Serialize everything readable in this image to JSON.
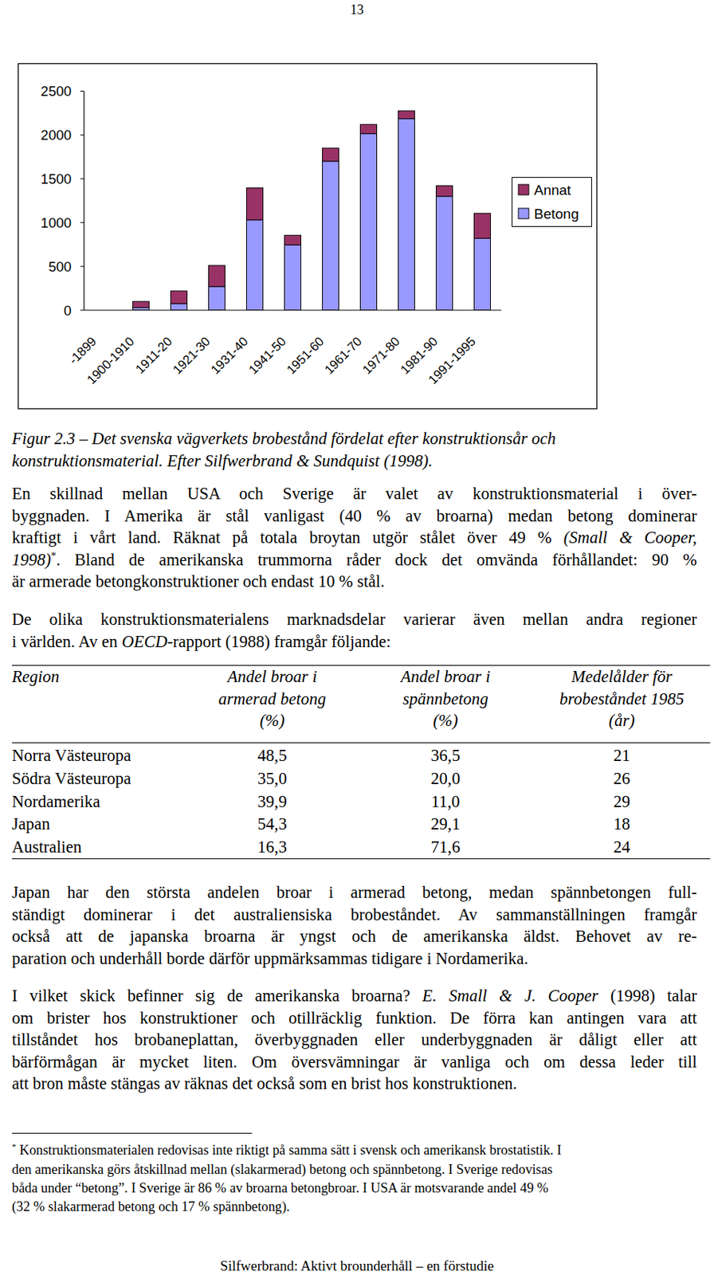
{
  "page_number": "13",
  "chart_data": {
    "type": "bar",
    "stacked": true,
    "categories": [
      "-1899",
      "1900-1910",
      "1911-20",
      "1921-30",
      "1931-40",
      "1941-50",
      "1951-60",
      "1961-70",
      "1971-80",
      "1981-90",
      "1991-1995"
    ],
    "series": [
      {
        "name": "Betong",
        "color": "#9999ff",
        "values": [
          0,
          30,
          75,
          270,
          1030,
          745,
          1700,
          2015,
          2185,
          1300,
          820
        ]
      },
      {
        "name": "Annat",
        "color": "#993366",
        "values": [
          0,
          70,
          145,
          240,
          365,
          110,
          150,
          105,
          90,
          120,
          285
        ]
      }
    ],
    "ylim": [
      0,
      2500
    ],
    "yticks": [
      0,
      500,
      1000,
      1500,
      2000,
      2500
    ],
    "grid": false,
    "legend": "right"
  },
  "caption": [
    "Figur 2.3 – Det svenska vägverkets brobestånd fördelat efter konstruktionsår och",
    "konstruktionsmaterial. Efter Silfwerbrand & Sundquist (1998)."
  ],
  "paragraphs": [
    {
      "lines": [
        [
          "En skillnad mellan USA och Sverige är valet av konstruktionsmaterial i över-"
        ],
        [
          "byggnaden. I Amerika är stål vanligast (40 % av broarna) medan betong dominerar"
        ],
        [
          "kraftigt i vårt land. Räknat på totala broytan utgör stålet över 49 % ",
          {
            "text": "(Small & Cooper,",
            "style": "italic"
          }
        ],
        [
          {
            "text": "1998)",
            "style": "italic"
          },
          {
            "text": "*",
            "style": "sup"
          },
          ". Bland de amerikanska trummorna råder dock det omvända förhållandet: 90 %"
        ],
        [
          "är armerade betongkonstruktioner och endast 10 % stål."
        ]
      ]
    },
    {
      "lines": [
        [
          "De olika konstruktionsmaterialens marknadsdelar varierar även mellan andra regioner"
        ],
        [
          "i världen. Av en ",
          {
            "text": "OECD",
            "style": "italic"
          },
          "-rapport (1988) framgår följande:"
        ]
      ]
    },
    {
      "lines": [
        [
          "Japan har den största andelen broar i armerad betong, medan spännbetongen full-"
        ],
        [
          "ständigt dominerar i det australiensiska brobeståndet. Av sammanställningen framgår"
        ],
        [
          "också att de japanska broarna är yngst och de amerikanska äldst. Behovet av re-"
        ],
        [
          "paration och underhåll borde därför uppmärksammas tidigare i Nordamerika."
        ]
      ]
    },
    {
      "lines": [
        [
          "I vilket skick befinner sig de amerikanska broarna? ",
          {
            "text": "E. Small & J. Cooper",
            "style": "italic"
          },
          " (1998) talar"
        ],
        [
          "om brister hos konstruktioner och otillräcklig funktion. De förra kan antingen vara att"
        ],
        [
          "tillståndet hos brobaneplattan, överbyggnaden eller underbyggnaden är dåligt eller att"
        ],
        [
          "bärförmågan är mycket liten. Om översvämningar är vanliga och om dessa leder till"
        ],
        [
          "att bron måste stängas av räknas det också som en brist hos konstruktionen."
        ]
      ]
    }
  ],
  "table": {
    "header": [
      [
        "Region"
      ],
      [
        "Andel broar i",
        "armerad betong",
        "(%)"
      ],
      [
        "Andel broar i",
        "spännbetong",
        "(%)"
      ],
      [
        "Medelålder för",
        "brobeståndet 1985",
        "(år)"
      ]
    ],
    "rows": [
      [
        "Norra Västeuropa",
        "48,5",
        "36,5",
        "21"
      ],
      [
        "Södra Västeuropa",
        "35,0",
        "20,0",
        "26"
      ],
      [
        "Nordamerika",
        "39,9",
        "11,0",
        "29"
      ],
      [
        "Japan",
        "54,3",
        "29,1",
        "18"
      ],
      [
        "Australien",
        "16,3",
        "71,6",
        "24"
      ]
    ]
  },
  "footnote": [
    [
      {
        "text": "*",
        "style": "sup"
      },
      " Konstruktionsmaterialen redovisas inte riktigt på samma sätt i svensk och amerikansk brostatistik. I"
    ],
    [
      "den amerikanska görs åtskillnad mellan (slakarmerad) betong och spännbetong. I Sverige redovisas"
    ],
    [
      "båda under “betong”. I Sverige är 86 % av broarna betongbroar. I USA är motsvarande andel 49 %"
    ],
    [
      "(32 % slakarmerad betong och 17 % spännbetong)."
    ]
  ],
  "footer": "Silfwerbrand: Aktivt brounderhåll – en förstudie"
}
